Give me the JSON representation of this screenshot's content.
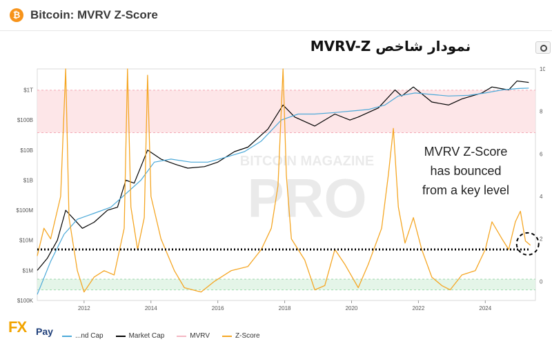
{
  "header": {
    "title": "Bitcoin: MVRV Z-Score",
    "logo_glyph": "₿",
    "camera_icon": "camera-icon"
  },
  "banner": {
    "text": "نمودار شاخص MVRV-Z"
  },
  "annotation": {
    "lines": [
      "MVRV Z-Score",
      "has bounced",
      "from a key level"
    ]
  },
  "watermark": {
    "line1": "BITCOIN MAGAZINE",
    "line2": "PRO"
  },
  "brand": {
    "fx": "FX",
    "pay": "Pay"
  },
  "legend": [
    {
      "label": "...nd Cap",
      "color": "#4aa8d8"
    },
    {
      "label": "Market Cap",
      "color": "#000000"
    },
    {
      "label": "MVRV",
      "color": "#f4b6c2"
    },
    {
      "label": "Z-Score",
      "color": "#f5a623"
    }
  ],
  "chart_data": {
    "type": "line",
    "title": "Bitcoin: MVRV Z-Score",
    "x_ticks": [
      "2012",
      "2014",
      "2016",
      "2018",
      "2020",
      "2022",
      "2024"
    ],
    "y_left_ticks": [
      "$100K",
      "$1M",
      "$10M",
      "$100M",
      "$1B",
      "$10B",
      "$100B",
      "$1T"
    ],
    "y_right_ticks": [
      "0",
      "2",
      "4",
      "6",
      "8",
      "10"
    ],
    "y_right_label": "MVRV Z-Score",
    "y_left_scale": "log",
    "x_range": [
      2010.6,
      2025.5
    ],
    "y_left_range_log10": [
      5,
      12.7
    ],
    "y_right_range": [
      -0.9,
      10
    ],
    "bands": [
      {
        "name": "overvalued zone",
        "from": 7,
        "to": 9,
        "axis": "right",
        "color": "#fde2e4"
      },
      {
        "name": "undervalued zone",
        "from": -0.4,
        "to": 0.1,
        "axis": "right",
        "color": "#dff3e4"
      }
    ],
    "key_level": {
      "value": 1.5,
      "axis": "right",
      "style": "dotted"
    },
    "series": [
      {
        "name": "Market Cap",
        "axis": "left_log10",
        "color": "#000000",
        "points": [
          [
            2010.6,
            6.0
          ],
          [
            2010.9,
            6.4
          ],
          [
            2011.2,
            7.0
          ],
          [
            2011.45,
            8.0
          ],
          [
            2011.7,
            7.7
          ],
          [
            2011.95,
            7.4
          ],
          [
            2012.3,
            7.6
          ],
          [
            2012.7,
            8.0
          ],
          [
            2013.0,
            8.1
          ],
          [
            2013.25,
            9.0
          ],
          [
            2013.5,
            8.9
          ],
          [
            2013.9,
            10.0
          ],
          [
            2014.3,
            9.7
          ],
          [
            2014.8,
            9.5
          ],
          [
            2015.1,
            9.4
          ],
          [
            2015.6,
            9.45
          ],
          [
            2016.0,
            9.6
          ],
          [
            2016.5,
            9.95
          ],
          [
            2016.9,
            10.1
          ],
          [
            2017.5,
            10.7
          ],
          [
            2017.95,
            11.5
          ],
          [
            2018.3,
            11.1
          ],
          [
            2018.9,
            10.8
          ],
          [
            2019.5,
            11.2
          ],
          [
            2019.95,
            11.0
          ],
          [
            2020.2,
            11.1
          ],
          [
            2020.8,
            11.4
          ],
          [
            2021.3,
            12.0
          ],
          [
            2021.5,
            11.8
          ],
          [
            2021.85,
            12.1
          ],
          [
            2022.4,
            11.6
          ],
          [
            2022.9,
            11.5
          ],
          [
            2023.3,
            11.7
          ],
          [
            2023.9,
            11.9
          ],
          [
            2024.2,
            12.1
          ],
          [
            2024.7,
            12.0
          ],
          [
            2024.95,
            12.3
          ],
          [
            2025.3,
            12.25
          ]
        ]
      },
      {
        "name": "Realized Cap",
        "axis": "left_log10",
        "color": "#4aa8d8",
        "points": [
          [
            2010.6,
            5.2
          ],
          [
            2011.0,
            6.3
          ],
          [
            2011.4,
            7.2
          ],
          [
            2011.8,
            7.7
          ],
          [
            2012.3,
            7.9
          ],
          [
            2012.8,
            8.1
          ],
          [
            2013.2,
            8.5
          ],
          [
            2013.7,
            9.0
          ],
          [
            2014.1,
            9.6
          ],
          [
            2014.6,
            9.7
          ],
          [
            2015.2,
            9.6
          ],
          [
            2015.7,
            9.6
          ],
          [
            2016.2,
            9.75
          ],
          [
            2016.8,
            9.95
          ],
          [
            2017.3,
            10.3
          ],
          [
            2017.9,
            11.0
          ],
          [
            2018.4,
            11.2
          ],
          [
            2018.9,
            11.2
          ],
          [
            2019.5,
            11.25
          ],
          [
            2020.0,
            11.3
          ],
          [
            2020.5,
            11.35
          ],
          [
            2021.0,
            11.5
          ],
          [
            2021.4,
            11.8
          ],
          [
            2021.9,
            11.9
          ],
          [
            2022.4,
            11.85
          ],
          [
            2022.9,
            11.8
          ],
          [
            2023.5,
            11.82
          ],
          [
            2024.0,
            11.9
          ],
          [
            2024.5,
            12.0
          ],
          [
            2025.0,
            12.05
          ],
          [
            2025.3,
            12.06
          ]
        ]
      },
      {
        "name": "Z-Score",
        "axis": "right",
        "color": "#f5a623",
        "points": [
          [
            2010.6,
            1.2
          ],
          [
            2010.8,
            2.5
          ],
          [
            2011.0,
            2.0
          ],
          [
            2011.3,
            4.0
          ],
          [
            2011.45,
            10.0
          ],
          [
            2011.55,
            3.0
          ],
          [
            2011.8,
            0.5
          ],
          [
            2012.0,
            -0.5
          ],
          [
            2012.3,
            0.2
          ],
          [
            2012.6,
            0.5
          ],
          [
            2012.9,
            0.3
          ],
          [
            2013.2,
            2.5
          ],
          [
            2013.3,
            10.0
          ],
          [
            2013.4,
            3.5
          ],
          [
            2013.6,
            1.5
          ],
          [
            2013.8,
            3.0
          ],
          [
            2013.9,
            9.7
          ],
          [
            2014.0,
            4.0
          ],
          [
            2014.3,
            2.0
          ],
          [
            2014.7,
            0.5
          ],
          [
            2015.0,
            -0.3
          ],
          [
            2015.5,
            -0.5
          ],
          [
            2015.9,
            0.0
          ],
          [
            2016.4,
            0.5
          ],
          [
            2016.9,
            0.7
          ],
          [
            2017.3,
            1.5
          ],
          [
            2017.6,
            2.5
          ],
          [
            2017.8,
            4.5
          ],
          [
            2017.95,
            10.0
          ],
          [
            2018.05,
            5.0
          ],
          [
            2018.2,
            2.0
          ],
          [
            2018.6,
            1.0
          ],
          [
            2018.9,
            -0.4
          ],
          [
            2019.2,
            -0.2
          ],
          [
            2019.5,
            1.5
          ],
          [
            2019.8,
            0.8
          ],
          [
            2020.2,
            -0.3
          ],
          [
            2020.5,
            0.8
          ],
          [
            2020.9,
            2.5
          ],
          [
            2021.1,
            5.0
          ],
          [
            2021.25,
            7.2
          ],
          [
            2021.4,
            3.5
          ],
          [
            2021.6,
            1.8
          ],
          [
            2021.85,
            3.0
          ],
          [
            2022.1,
            1.5
          ],
          [
            2022.4,
            0.2
          ],
          [
            2022.7,
            -0.2
          ],
          [
            2022.95,
            -0.4
          ],
          [
            2023.3,
            0.3
          ],
          [
            2023.7,
            0.5
          ],
          [
            2024.0,
            1.5
          ],
          [
            2024.2,
            2.8
          ],
          [
            2024.5,
            2.0
          ],
          [
            2024.7,
            1.5
          ],
          [
            2024.9,
            2.8
          ],
          [
            2025.05,
            3.3
          ],
          [
            2025.2,
            1.9
          ],
          [
            2025.35,
            1.7
          ]
        ]
      }
    ]
  }
}
